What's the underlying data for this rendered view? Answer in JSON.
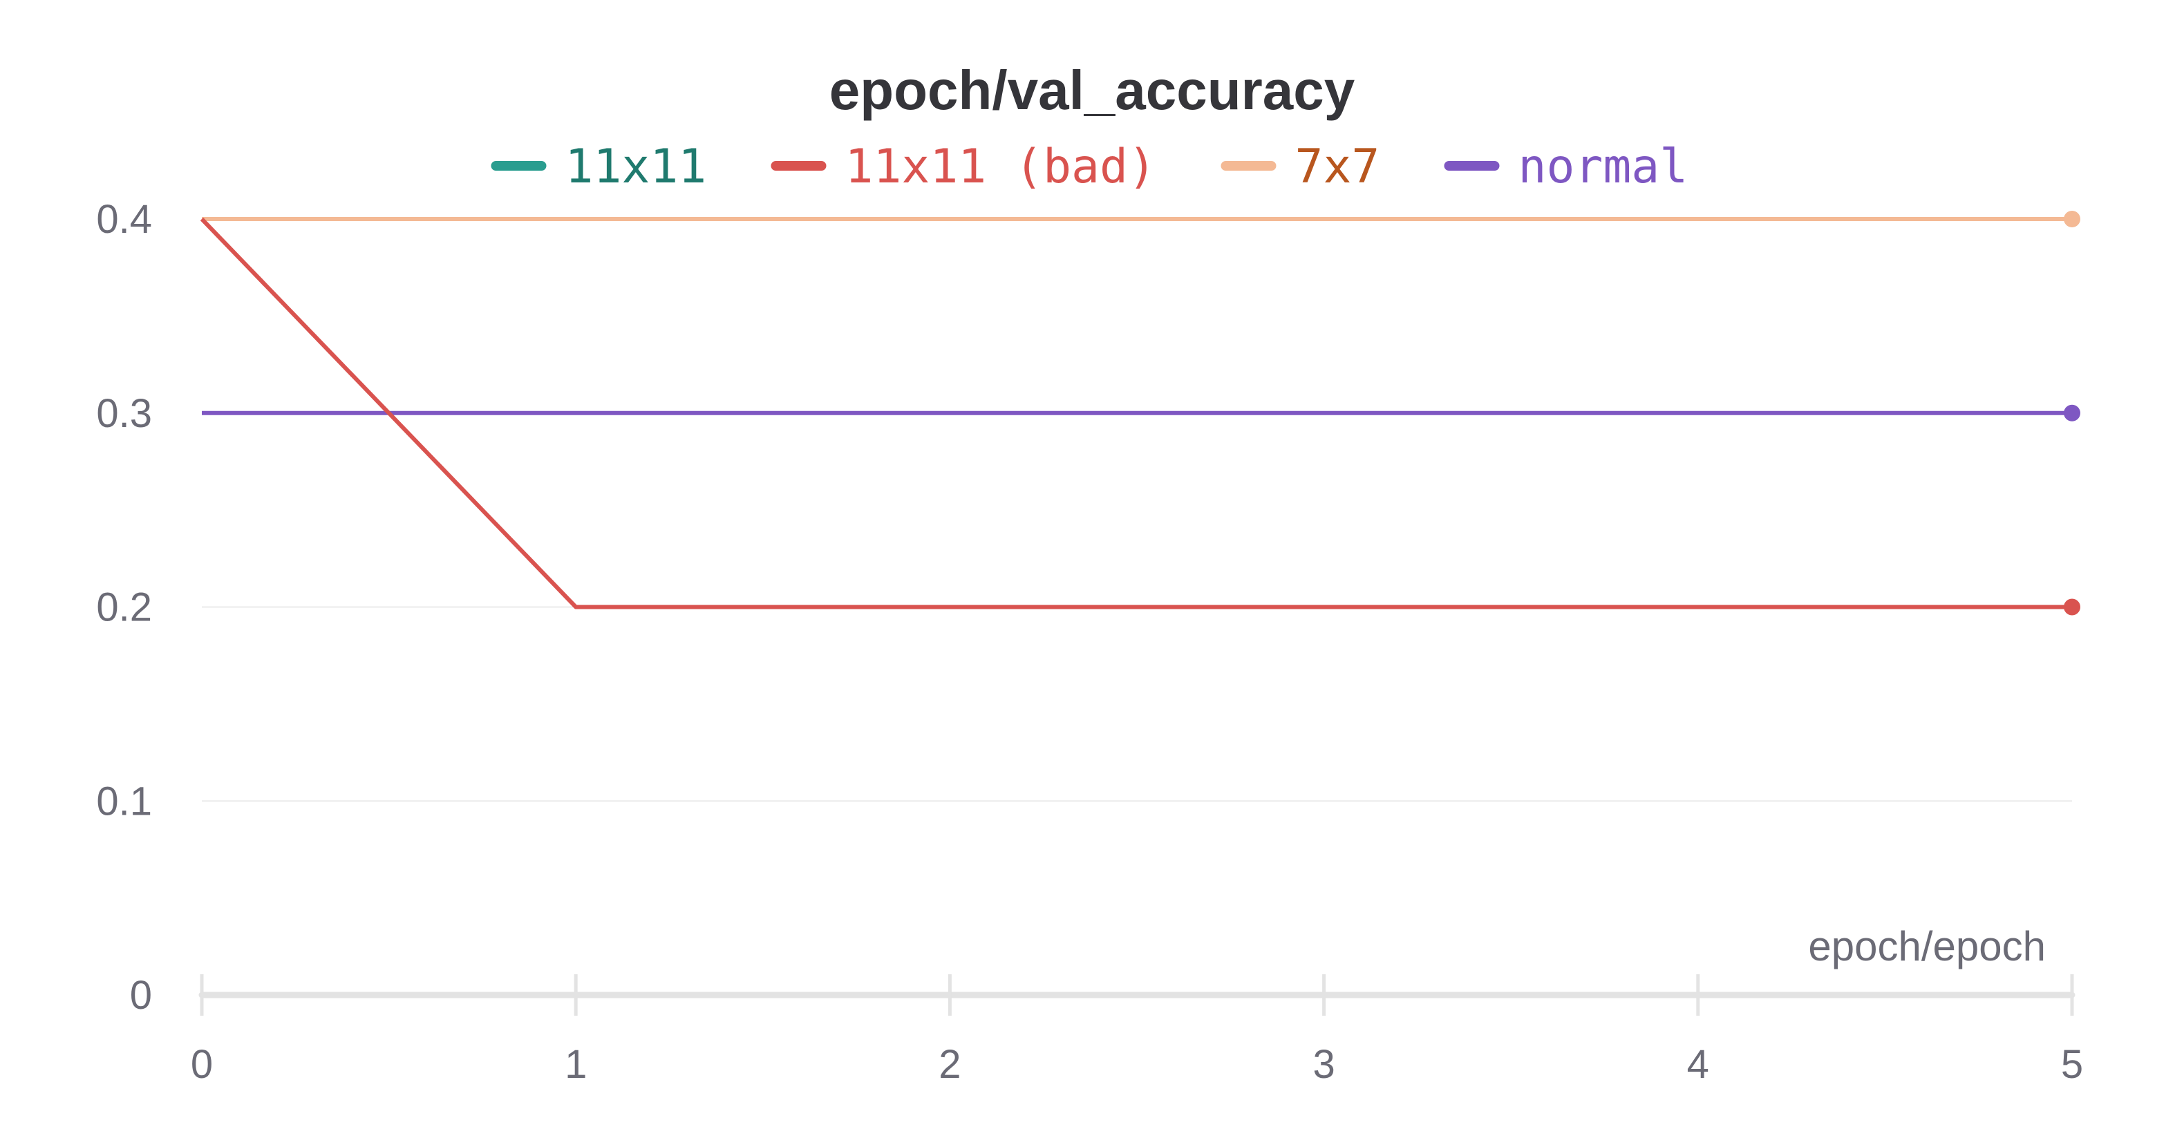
{
  "chart_data": {
    "type": "line",
    "title": "epoch/val_accuracy",
    "xlabel": "epoch/epoch",
    "ylabel": "",
    "x_ticks": [
      "0",
      "1",
      "2",
      "3",
      "4",
      "5"
    ],
    "y_ticks": [
      "0",
      "0.1",
      "0.2",
      "0.3",
      "0.4"
    ],
    "xlim": [
      0,
      5
    ],
    "ylim": [
      0,
      0.4
    ],
    "grid": "horizontal",
    "legend_position": "top-center",
    "series": [
      {
        "name": "11x11",
        "color": "#2a9d8f",
        "text_color": "#1f7a6e",
        "x": [],
        "y": []
      },
      {
        "name": "11x11 (bad)",
        "color": "#d9534f",
        "text_color": "#d9534f",
        "x": [
          0,
          1,
          2,
          3,
          4,
          5
        ],
        "y": [
          0.4,
          0.2,
          0.2,
          0.2,
          0.2,
          0.2
        ]
      },
      {
        "name": "7x7",
        "color": "#f4b994",
        "text_color": "#b8561e",
        "x": [
          0,
          1,
          2,
          3,
          4,
          5
        ],
        "y": [
          0.4,
          0.4,
          0.4,
          0.4,
          0.4,
          0.4
        ]
      },
      {
        "name": "normal",
        "color": "#7e57c2",
        "text_color": "#7e57c2",
        "x": [
          0,
          1,
          2,
          3,
          4,
          5
        ],
        "y": [
          0.3,
          0.3,
          0.3,
          0.3,
          0.3,
          0.3
        ]
      }
    ]
  }
}
